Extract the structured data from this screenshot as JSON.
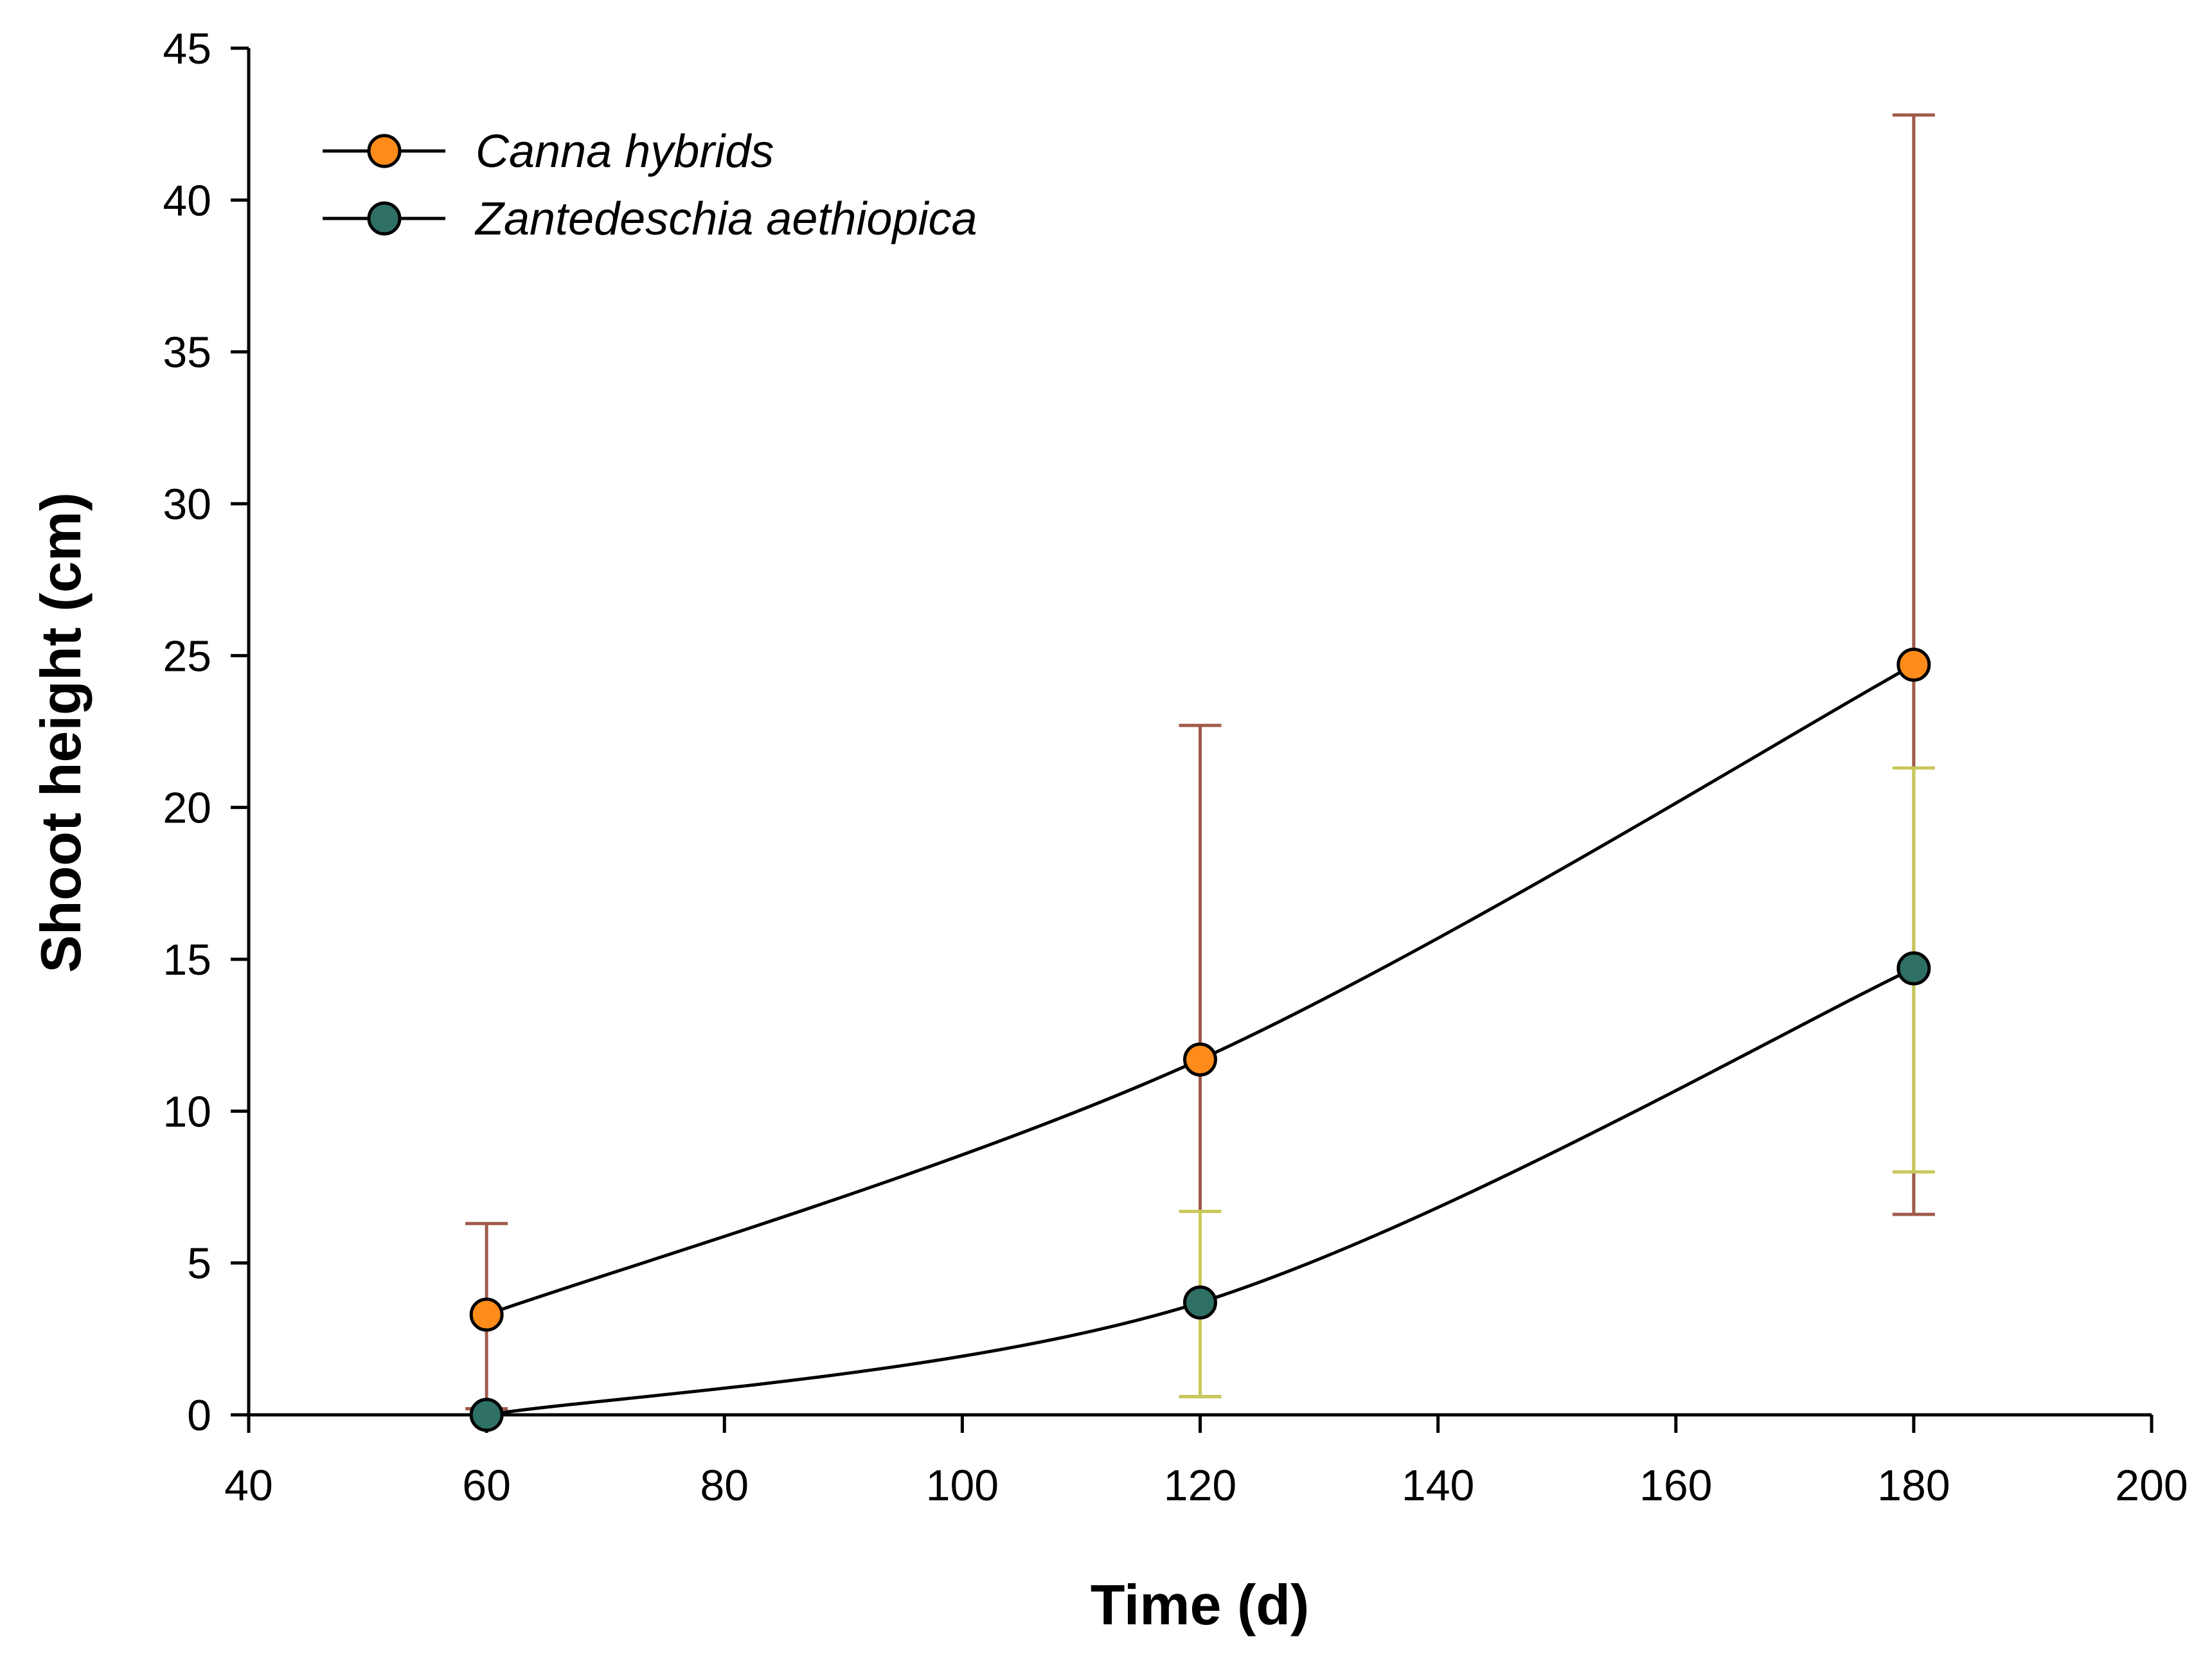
{
  "chart_data": {
    "type": "line",
    "title": "",
    "xlabel": "Time (d)",
    "ylabel": "Shoot height (cm)",
    "xlim": [
      40,
      200
    ],
    "ylim": [
      0,
      45
    ],
    "xticks": [
      40,
      60,
      80,
      100,
      120,
      140,
      160,
      180,
      200
    ],
    "yticks": [
      0,
      5,
      10,
      15,
      20,
      25,
      30,
      35,
      40,
      45
    ],
    "x": [
      60,
      120,
      180
    ],
    "legend_position": "top-left",
    "grid": false,
    "series": [
      {
        "name": "Canna hybrids",
        "values": [
          3.3,
          11.7,
          24.7
        ],
        "err_low": [
          0.2,
          0.6,
          6.6
        ],
        "err_high": [
          6.3,
          22.7,
          42.8
        ],
        "marker_color": "#ff8c1a",
        "error_color": "#a05a4a"
      },
      {
        "name": "Zantedeschia aethiopica",
        "values": [
          0.0,
          3.7,
          14.7
        ],
        "err_low": [
          0.0,
          0.6,
          8.0
        ],
        "err_high": [
          0.0,
          6.7,
          21.3
        ],
        "marker_color": "#2f7065",
        "error_color": "#c8c85a"
      }
    ]
  }
}
